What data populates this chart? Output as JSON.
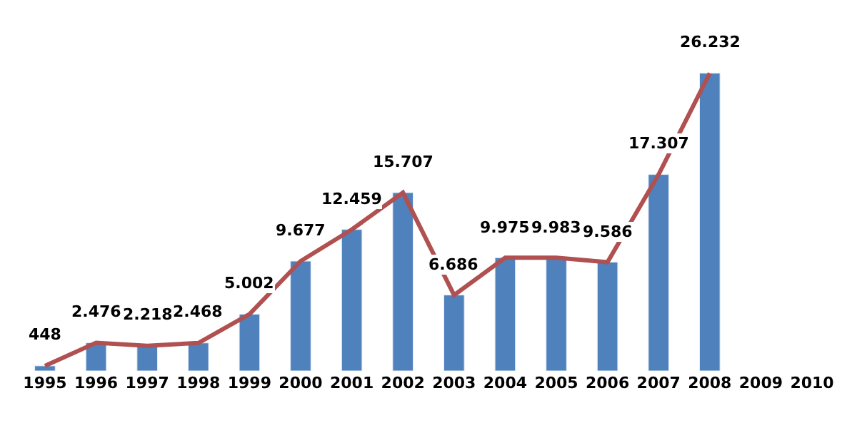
{
  "chart_data": {
    "type": "bar",
    "categories": [
      "1995",
      "1996",
      "1997",
      "1998",
      "1999",
      "2000",
      "2001",
      "2002",
      "2003",
      "2004",
      "2005",
      "2006",
      "2007",
      "2008",
      "2009",
      "2010"
    ],
    "series": [
      {
        "color": "#4f81bd",
        "values": [
          448,
          2476,
          2218,
          2468,
          5002,
          9677,
          12459,
          15707,
          6686,
          9975,
          9983,
          9586,
          17307,
          26232,
          null,
          null
        ],
        "value_labels": [
          "448",
          "2.476",
          "2.218",
          "2.468",
          "5.002",
          "9.677",
          "12.459",
          "15.707",
          "6.686",
          "9.975",
          "9.983",
          "9.586",
          "17.307",
          "26.232",
          null,
          null
        ]
      },
      {
        "type": "line",
        "color": "#b05050",
        "values": [
          448,
          2476,
          2218,
          2468,
          5002,
          9677,
          12459,
          15707,
          6686,
          9975,
          9983,
          9586,
          17307,
          26232,
          null,
          null
        ]
      }
    ]
  }
}
